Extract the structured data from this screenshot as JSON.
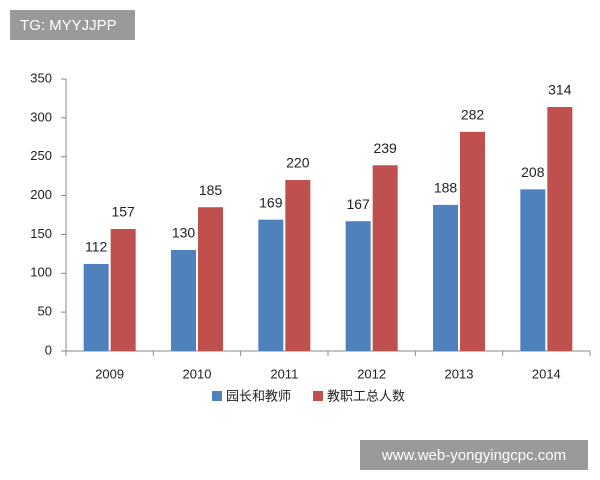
{
  "chart_data": {
    "type": "bar",
    "categories": [
      "2009",
      "2010",
      "2011",
      "2012",
      "2013",
      "2014"
    ],
    "series": [
      {
        "name": "园长和教师",
        "color": "#4f81bd",
        "values": [
          112,
          130,
          169,
          167,
          188,
          208
        ]
      },
      {
        "name": "教职工总人数",
        "color": "#c0504d",
        "values": [
          157,
          185,
          220,
          239,
          282,
          314
        ]
      }
    ],
    "ylim": [
      0,
      350
    ],
    "yticks": [
      0,
      50,
      100,
      150,
      200,
      250,
      300,
      350
    ],
    "grid": false,
    "legend": "bottom"
  },
  "watermarks": [
    "TG: MYYJJPP",
    "www.web-yongyingcpc.com"
  ]
}
